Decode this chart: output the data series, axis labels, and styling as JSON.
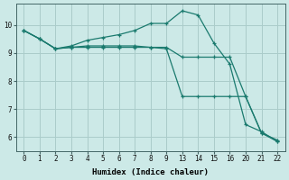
{
  "bg_color": "#cce9e7",
  "grid_color": "#aaccca",
  "line_color": "#1a7a6e",
  "xlabel": "Humidex (Indice chaleur)",
  "ylim": [
    5.5,
    10.75
  ],
  "yticks": [
    6,
    7,
    8,
    9,
    10
  ],
  "xtick_labels": [
    "0",
    "1",
    "2",
    "3",
    "4",
    "5",
    "6",
    "7",
    "8",
    "9",
    "13",
    "14",
    "15",
    "16",
    "20",
    "21",
    "22"
  ],
  "series1_y": [
    9.8,
    9.5,
    9.15,
    9.25,
    9.45,
    9.55,
    9.65,
    9.8,
    10.05,
    10.05,
    10.5,
    10.35,
    9.35,
    8.6,
    6.45,
    6.2,
    5.85
  ],
  "series2_y": [
    9.8,
    9.5,
    9.15,
    9.2,
    9.25,
    9.25,
    9.25,
    9.25,
    9.2,
    9.2,
    8.85,
    8.85,
    8.85,
    8.85,
    7.45,
    6.15,
    5.9
  ],
  "series3_y": [
    9.8,
    9.5,
    9.15,
    9.2,
    9.2,
    9.2,
    9.2,
    9.2,
    9.2,
    9.15,
    7.45,
    7.45,
    7.45,
    7.45,
    7.45,
    6.15,
    5.85
  ],
  "font_family": "monospace",
  "tick_fontsize": 5.5,
  "xlabel_fontsize": 6.5
}
